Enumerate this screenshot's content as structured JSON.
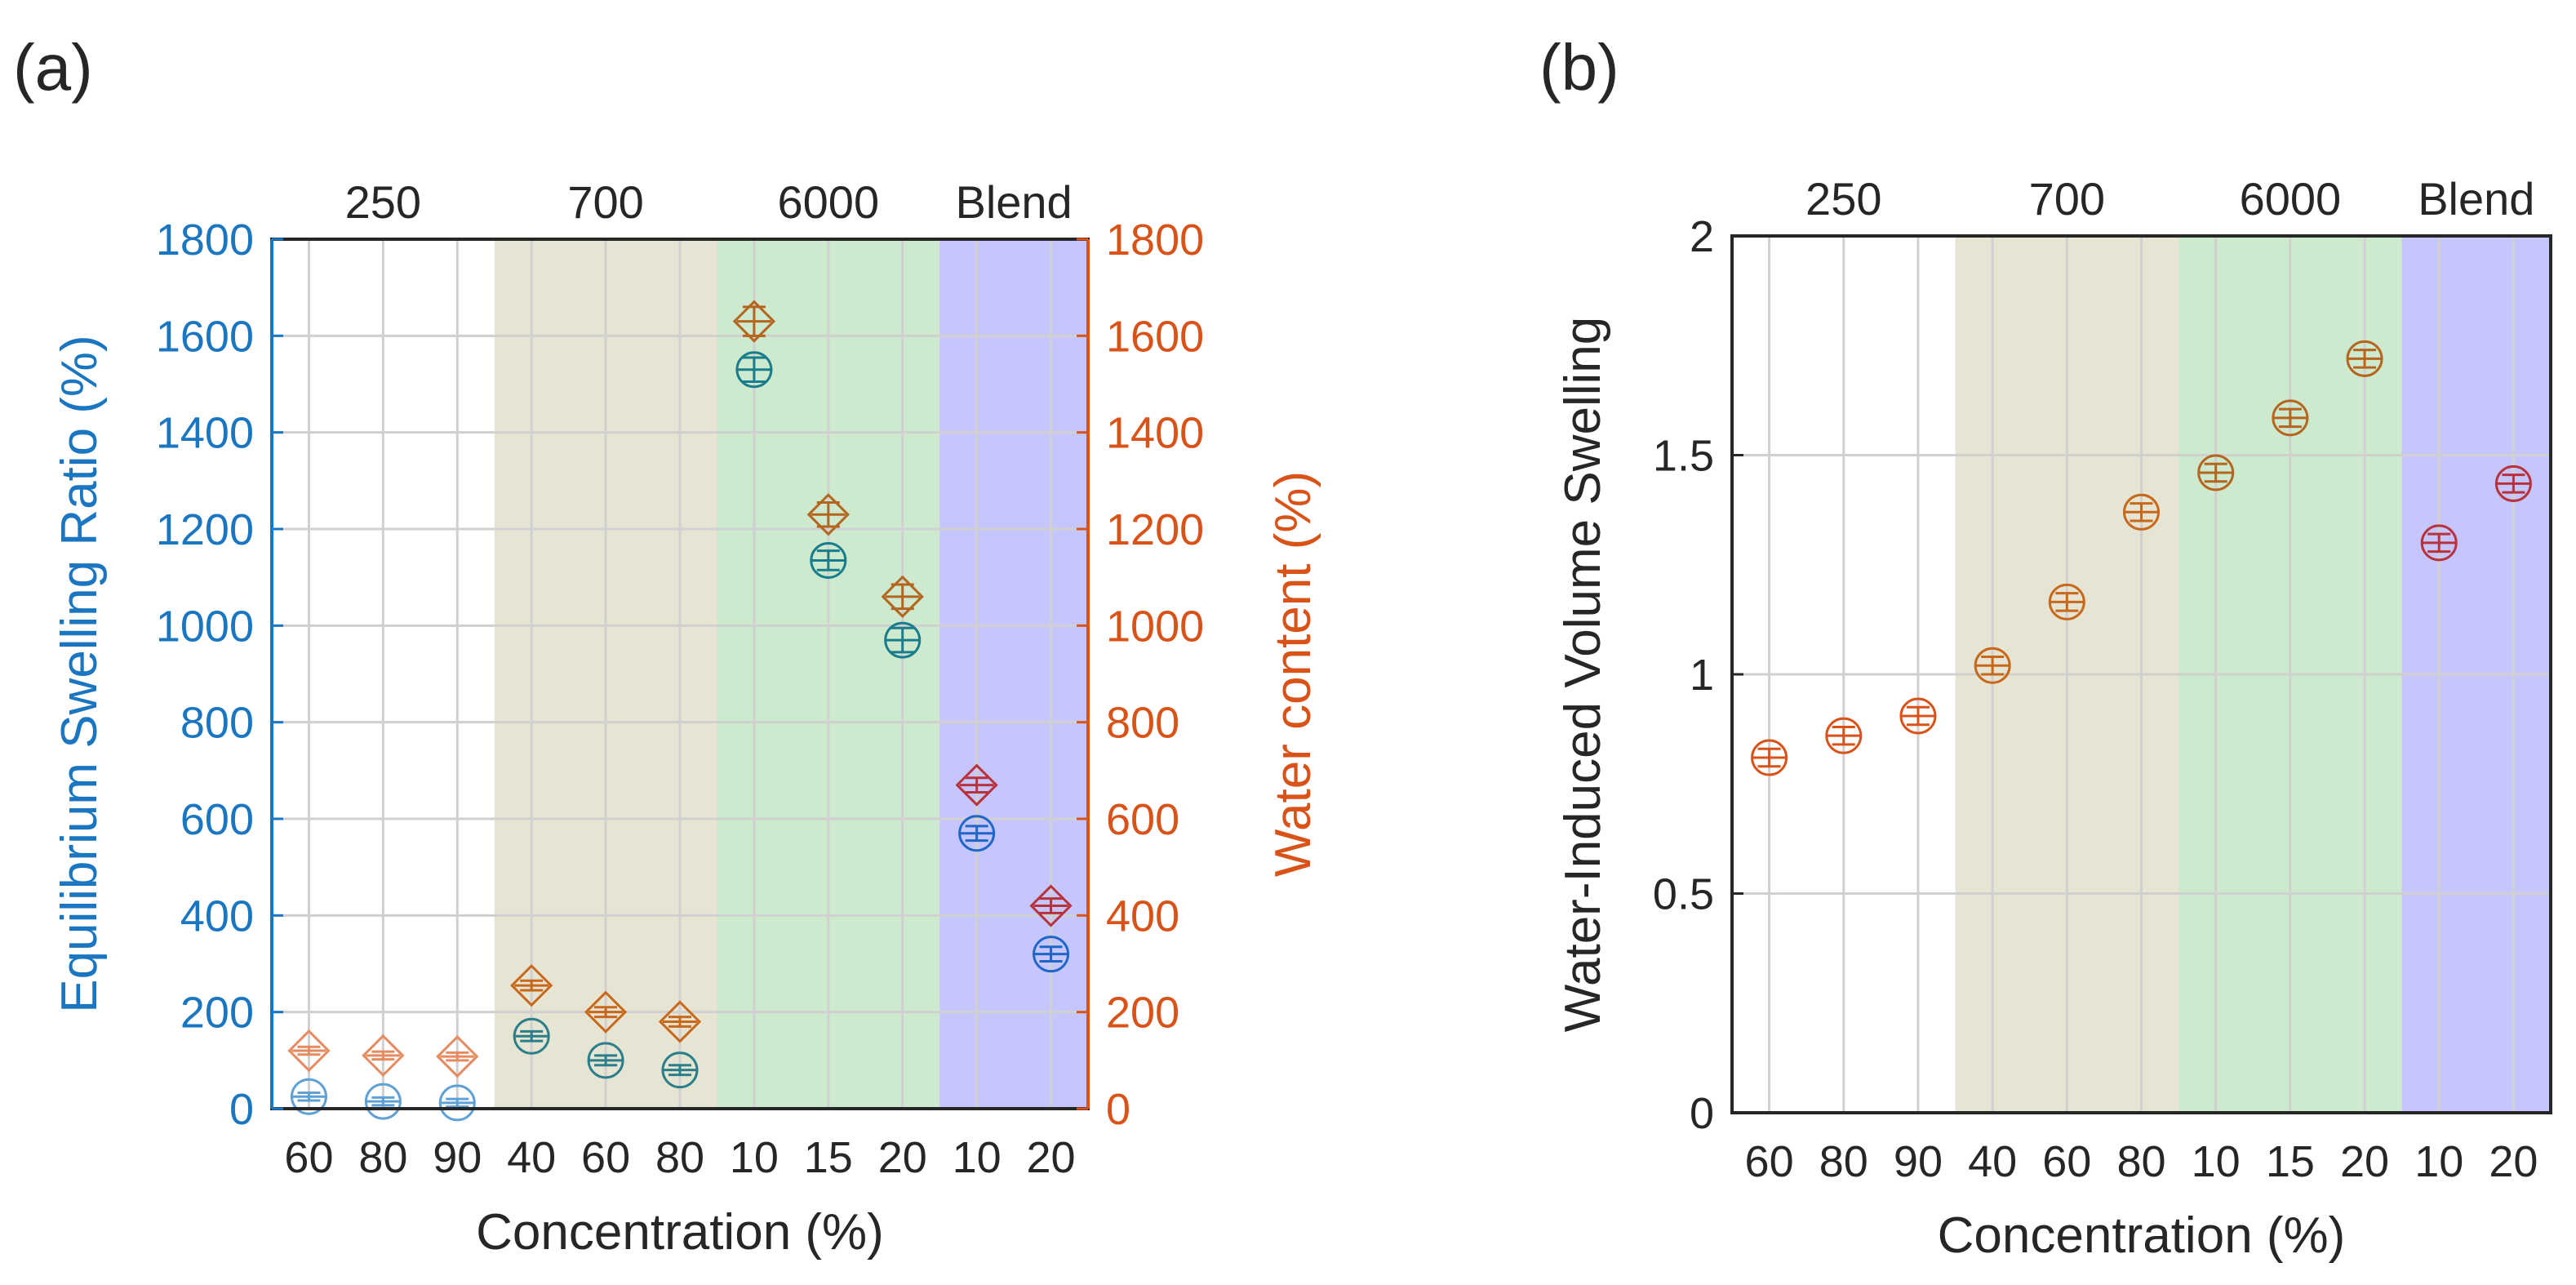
{
  "chart_data": [
    {
      "panel_label": "(a)",
      "type": "scatter",
      "xlabel": "Concentration (%)",
      "ylabel_left": "Equilibrium Swelling Ratio (%)",
      "ylabel_right": "Water content (%)",
      "ylim": [
        0,
        1800
      ],
      "yticks": [
        "0",
        "200",
        "400",
        "600",
        "800",
        "1000",
        "1200",
        "1400",
        "1600",
        "1800"
      ],
      "categories": [
        "60",
        "80",
        "90",
        "40",
        "60",
        "80",
        "10",
        "15",
        "20",
        "10",
        "20"
      ],
      "groups": [
        {
          "label": "250",
          "start": 0,
          "end": 2,
          "color": "#ffffff",
          "alpha": 0
        },
        {
          "label": "700",
          "start": 3,
          "end": 5,
          "color": "#bcb98a",
          "alpha": 0.38
        },
        {
          "label": "6000",
          "start": 6,
          "end": 8,
          "color": "#7cc47f",
          "alpha": 0.38
        },
        {
          "label": "Blend",
          "start": 9,
          "end": 10,
          "color": "#5b5bff",
          "alpha": 0.35
        }
      ],
      "series": [
        {
          "name": "Equilibrium Swelling Ratio",
          "marker": "circle",
          "values": [
            25,
            15,
            12,
            150,
            100,
            80,
            1530,
            1135,
            970,
            570,
            320
          ],
          "errors": [
            8,
            8,
            8,
            10,
            10,
            10,
            25,
            20,
            25,
            15,
            15
          ],
          "colors": [
            "#5fa0d6",
            "#5fa0d6",
            "#5fa0d6",
            "#2a7f8a",
            "#2a7f8a",
            "#2a7f8a",
            "#1a7d8c",
            "#1a7d8c",
            "#1a7d8c",
            "#1f66c8",
            "#1f66c8"
          ]
        },
        {
          "name": "Water content",
          "marker": "diamond",
          "values": [
            120,
            110,
            108,
            255,
            200,
            180,
            1630,
            1230,
            1060,
            670,
            420
          ],
          "errors": [
            8,
            8,
            8,
            10,
            10,
            10,
            30,
            25,
            25,
            15,
            15
          ],
          "colors": [
            "#e88a60",
            "#e88a60",
            "#e88a60",
            "#c8681a",
            "#c8681a",
            "#c8681a",
            "#b4651e",
            "#b4651e",
            "#b4651e",
            "#b8323c",
            "#b8323c"
          ]
        }
      ],
      "left_axis_color": "#1b76c2",
      "right_axis_color": "#d95319"
    },
    {
      "panel_label": "(b)",
      "type": "scatter",
      "xlabel": "Concentration (%)",
      "ylabel": "Water-Induced Volume Swelling",
      "ylim": [
        0,
        2
      ],
      "yticks": [
        "0",
        "0.5",
        "1",
        "1.5",
        "2"
      ],
      "categories": [
        "60",
        "80",
        "90",
        "40",
        "60",
        "80",
        "10",
        "15",
        "20",
        "10",
        "20"
      ],
      "groups": [
        {
          "label": "250",
          "start": 0,
          "end": 2,
          "color": "#ffffff",
          "alpha": 0
        },
        {
          "label": "700",
          "start": 3,
          "end": 5,
          "color": "#bcb98a",
          "alpha": 0.38
        },
        {
          "label": "6000",
          "start": 6,
          "end": 8,
          "color": "#7cc47f",
          "alpha": 0.38
        },
        {
          "label": "Blend",
          "start": 9,
          "end": 10,
          "color": "#5b5bff",
          "alpha": 0.35
        }
      ],
      "series": [
        {
          "name": "Water-Induced Volume Swelling",
          "marker": "circle",
          "values": [
            0.81,
            0.86,
            0.905,
            1.02,
            1.165,
            1.37,
            1.46,
            1.585,
            1.72,
            1.3,
            1.435
          ],
          "errors": [
            0.02,
            0.02,
            0.02,
            0.02,
            0.02,
            0.02,
            0.02,
            0.02,
            0.02,
            0.02,
            0.02
          ],
          "colors": [
            "#d95319",
            "#d95319",
            "#d95319",
            "#c8681a",
            "#c8681a",
            "#c8681a",
            "#b4651e",
            "#b4651e",
            "#b4651e",
            "#b8323c",
            "#b8323c"
          ]
        }
      ]
    }
  ]
}
